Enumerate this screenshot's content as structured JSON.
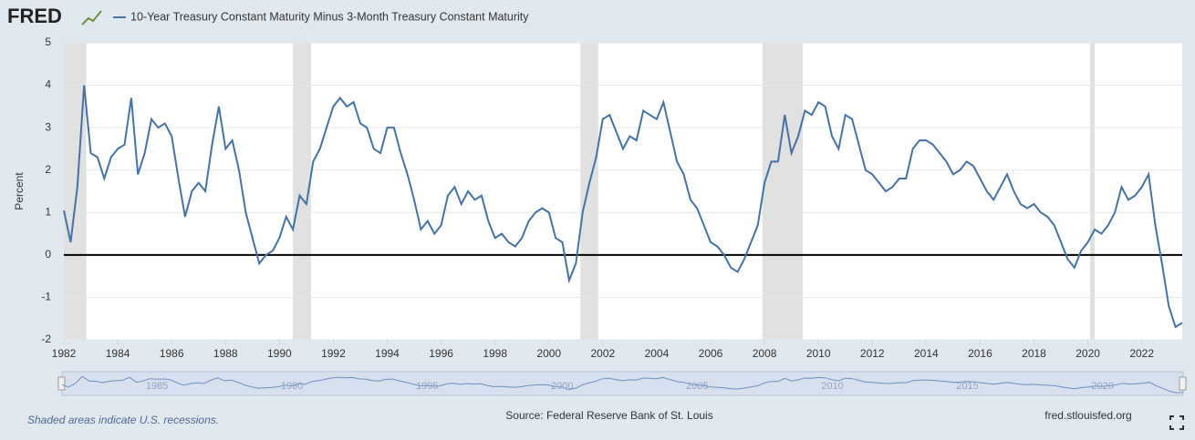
{
  "chart_data": {
    "type": "line",
    "brand": "FRED",
    "ylabel": "Percent",
    "recession_note": "Shaded areas indicate U.S. recessions.",
    "source": "Source: Federal Reserve Bank of St. Louis",
    "site": "fred.stlouisfed.org",
    "xlim": [
      1982,
      2023.5
    ],
    "xticks": [
      1982,
      1984,
      1986,
      1988,
      1990,
      1992,
      1994,
      1996,
      1998,
      2000,
      2002,
      2004,
      2006,
      2008,
      2010,
      2012,
      2014,
      2016,
      2018,
      2020,
      2022
    ],
    "ylim": [
      -2,
      5
    ],
    "yticks": [
      -2,
      -1,
      0,
      1,
      2,
      3,
      4,
      5
    ],
    "grid": true,
    "hline": 0,
    "recessions": [
      [
        1982.0,
        1982.83
      ],
      [
        1990.5,
        1991.17
      ],
      [
        2001.17,
        2001.83
      ],
      [
        2007.92,
        2009.42
      ],
      [
        2020.08,
        2020.25
      ]
    ],
    "navigator_ticks": [
      1985,
      1990,
      1995,
      2000,
      2005,
      2010,
      2015,
      2020
    ],
    "x": [
      1982.0,
      1982.25,
      1982.5,
      1982.75,
      1983.0,
      1983.25,
      1983.5,
      1983.75,
      1984.0,
      1984.25,
      1984.5,
      1984.75,
      1985.0,
      1985.25,
      1985.5,
      1985.75,
      1986.0,
      1986.25,
      1986.5,
      1986.75,
      1987.0,
      1987.25,
      1987.5,
      1987.75,
      1988.0,
      1988.25,
      1988.5,
      1988.75,
      1989.0,
      1989.25,
      1989.5,
      1989.75,
      1990.0,
      1990.25,
      1990.5,
      1990.75,
      1991.0,
      1991.25,
      1991.5,
      1991.75,
      1992.0,
      1992.25,
      1992.5,
      1992.75,
      1993.0,
      1993.25,
      1993.5,
      1993.75,
      1994.0,
      1994.25,
      1994.5,
      1994.75,
      1995.0,
      1995.25,
      1995.5,
      1995.75,
      1996.0,
      1996.25,
      1996.5,
      1996.75,
      1997.0,
      1997.25,
      1997.5,
      1997.75,
      1998.0,
      1998.25,
      1998.5,
      1998.75,
      1999.0,
      1999.25,
      1999.5,
      1999.75,
      2000.0,
      2000.25,
      2000.5,
      2000.75,
      2001.0,
      2001.25,
      2001.5,
      2001.75,
      2002.0,
      2002.25,
      2002.5,
      2002.75,
      2003.0,
      2003.25,
      2003.5,
      2003.75,
      2004.0,
      2004.25,
      2004.5,
      2004.75,
      2005.0,
      2005.25,
      2005.5,
      2005.75,
      2006.0,
      2006.25,
      2006.5,
      2006.75,
      2007.0,
      2007.25,
      2007.5,
      2007.75,
      2008.0,
      2008.25,
      2008.5,
      2008.75,
      2009.0,
      2009.25,
      2009.5,
      2009.75,
      2010.0,
      2010.25,
      2010.5,
      2010.75,
      2011.0,
      2011.25,
      2011.5,
      2011.75,
      2012.0,
      2012.25,
      2012.5,
      2012.75,
      2013.0,
      2013.25,
      2013.5,
      2013.75,
      2014.0,
      2014.25,
      2014.5,
      2014.75,
      2015.0,
      2015.25,
      2015.5,
      2015.75,
      2016.0,
      2016.25,
      2016.5,
      2016.75,
      2017.0,
      2017.25,
      2017.5,
      2017.75,
      2018.0,
      2018.25,
      2018.5,
      2018.75,
      2019.0,
      2019.25,
      2019.5,
      2019.75,
      2020.0,
      2020.25,
      2020.5,
      2020.75,
      2021.0,
      2021.25,
      2021.5,
      2021.75,
      2022.0,
      2022.25,
      2022.5,
      2022.75,
      2023.0,
      2023.25,
      2023.5
    ],
    "series": [
      {
        "name": "10-Year Treasury Constant Maturity Minus 3-Month Treasury Constant Maturity",
        "color": "#4572a7",
        "values": [
          1.05,
          0.3,
          1.6,
          4.0,
          2.4,
          2.3,
          1.8,
          2.3,
          2.5,
          2.6,
          3.7,
          1.9,
          2.4,
          3.2,
          3.0,
          3.1,
          2.8,
          1.8,
          0.9,
          1.5,
          1.7,
          1.5,
          2.6,
          3.5,
          2.5,
          2.7,
          2.0,
          1.0,
          0.4,
          -0.2,
          0.0,
          0.1,
          0.4,
          0.9,
          0.6,
          1.4,
          1.2,
          2.2,
          2.5,
          3.0,
          3.5,
          3.7,
          3.5,
          3.6,
          3.1,
          3.0,
          2.5,
          2.4,
          3.0,
          3.0,
          2.4,
          1.9,
          1.3,
          0.6,
          0.8,
          0.5,
          0.7,
          1.4,
          1.6,
          1.2,
          1.5,
          1.3,
          1.4,
          0.8,
          0.4,
          0.5,
          0.3,
          0.2,
          0.4,
          0.8,
          1.0,
          1.1,
          1.0,
          0.4,
          0.3,
          -0.6,
          -0.2,
          1.0,
          1.7,
          2.3,
          3.2,
          3.3,
          2.9,
          2.5,
          2.8,
          2.7,
          3.4,
          3.3,
          3.2,
          3.6,
          2.9,
          2.2,
          1.9,
          1.3,
          1.1,
          0.7,
          0.3,
          0.2,
          0.0,
          -0.3,
          -0.4,
          -0.1,
          0.3,
          0.7,
          1.7,
          2.2,
          2.2,
          3.3,
          2.4,
          2.8,
          3.4,
          3.3,
          3.6,
          3.5,
          2.8,
          2.5,
          3.3,
          3.2,
          2.6,
          2.0,
          1.9,
          1.7,
          1.5,
          1.6,
          1.8,
          1.8,
          2.5,
          2.7,
          2.7,
          2.6,
          2.4,
          2.2,
          1.9,
          2.0,
          2.2,
          2.1,
          1.8,
          1.5,
          1.3,
          1.6,
          1.9,
          1.5,
          1.2,
          1.1,
          1.2,
          1.0,
          0.9,
          0.7,
          0.3,
          -0.1,
          -0.3,
          0.1,
          0.3,
          0.6,
          0.5,
          0.7,
          1.0,
          1.6,
          1.3,
          1.4,
          1.6,
          1.9,
          0.7,
          -0.2,
          -1.2,
          -1.7,
          -1.6
        ]
      }
    ]
  }
}
